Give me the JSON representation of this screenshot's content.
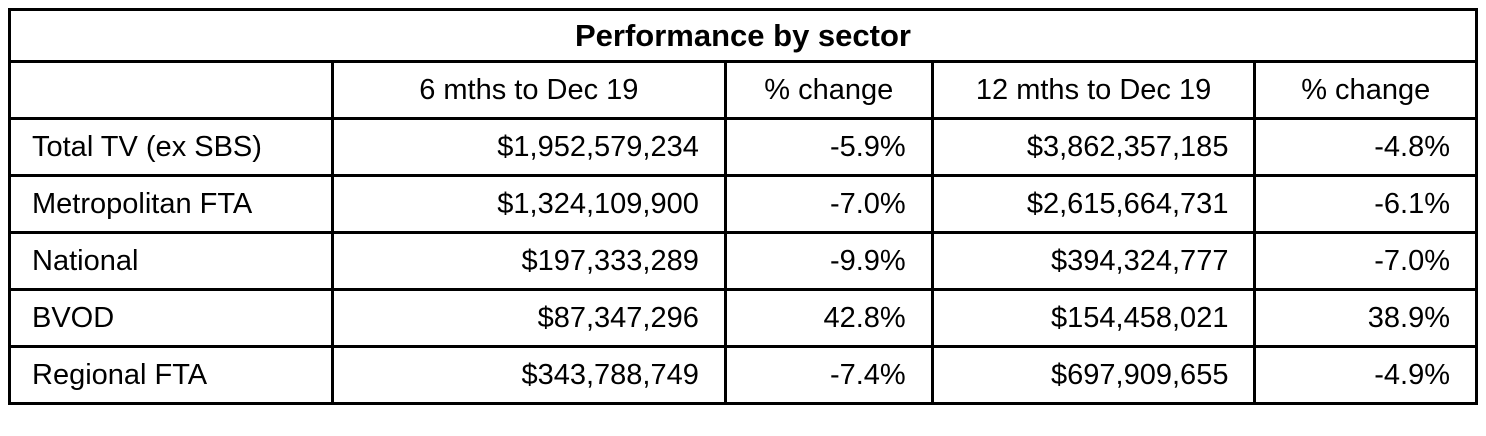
{
  "chart_data": {
    "type": "table",
    "title": "Performance by sector",
    "columns": [
      "",
      "6 mths to Dec 19",
      "% change",
      "12 mths to Dec 19",
      "% change"
    ],
    "rows": [
      [
        "Total TV (ex SBS)",
        "$1,952,579,234",
        "-5.9%",
        "$3,862,357,185",
        "-4.8%"
      ],
      [
        "Metropolitan FTA",
        "$1,324,109,900",
        "-7.0%",
        "$2,615,664,731",
        "-6.1%"
      ],
      [
        "National",
        "$197,333,289",
        "-9.9%",
        "$394,324,777",
        "-7.0%"
      ],
      [
        "BVOD",
        "$87,347,296",
        "42.8%",
        "$154,458,021",
        "38.9%"
      ],
      [
        "Regional FTA",
        "$343,788,749",
        "-7.4%",
        "$697,909,655",
        "-4.9%"
      ]
    ],
    "values_numeric": {
      "six_months_to_dec19": [
        1952579234,
        1324109900,
        197333289,
        87347296,
        343788749
      ],
      "six_months_pct_change": [
        -5.9,
        -7.0,
        -9.9,
        42.8,
        -7.4
      ],
      "twelve_months_to_dec19": [
        3862357185,
        2615664731,
        394324777,
        154458021,
        697909655
      ],
      "twelve_months_pct_change": [
        -4.8,
        -6.1,
        -7.0,
        38.9,
        -4.9
      ]
    },
    "colors": {
      "border": "#000000",
      "text": "#000000",
      "background": "#ffffff"
    }
  }
}
